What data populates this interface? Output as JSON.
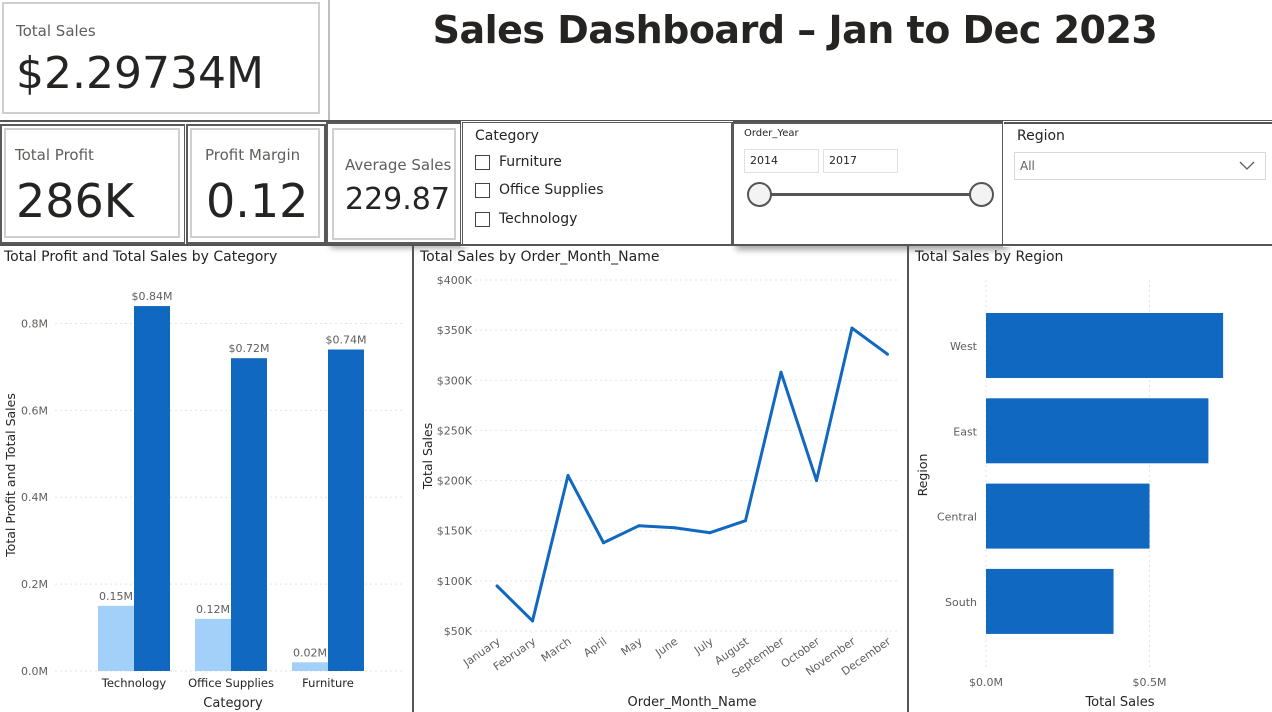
{
  "title": "Sales Dashboard – Jan to Dec 2023",
  "kpis": {
    "total_sales": {
      "label": "Total Sales",
      "value": "$2.29734M"
    },
    "total_profit": {
      "label": "Total Profit",
      "value": "286K"
    },
    "profit_margin": {
      "label": "Profit Margin",
      "value": "0.12"
    },
    "average_sales": {
      "label": "Average Sales",
      "value": "229.87"
    }
  },
  "slicers": {
    "category": {
      "title": "Category",
      "options": [
        "Furniture",
        "Office Supplies",
        "Technology"
      ]
    },
    "order_year": {
      "title": "Order_Year",
      "from": "2014",
      "to": "2017"
    },
    "region": {
      "title": "Region",
      "selected": "All"
    }
  },
  "colors": {
    "dark_blue": "#1068c0",
    "light_blue": "#a3d0f9",
    "grid": "#e3e3e3"
  },
  "chart_data": [
    {
      "type": "bar",
      "title": "Total Profit and Total Sales by Category",
      "categories": [
        "Technology",
        "Office Supplies",
        "Furniture"
      ],
      "series": [
        {
          "name": "Total Profit",
          "values": [
            0.15,
            0.12,
            0.02
          ],
          "labels": [
            "0.15M",
            "0.12M",
            "0.02M"
          ],
          "color": "#a3d0f9"
        },
        {
          "name": "Total Sales",
          "values": [
            0.84,
            0.72,
            0.74
          ],
          "labels": [
            "$0.84M",
            "$0.72M",
            "$0.74M"
          ],
          "color": "#1068c0"
        }
      ],
      "xlabel": "Category",
      "ylabel": "Total Profit and Total Sales",
      "yticks": [
        0,
        0.2,
        0.4,
        0.6,
        0.8
      ],
      "ytick_labels": [
        "0.0M",
        "0.2M",
        "0.4M",
        "0.6M",
        "0.8M"
      ],
      "ylim": [
        0,
        0.9
      ]
    },
    {
      "type": "line",
      "title": "Total Sales by Order_Month_Name",
      "x": [
        "January",
        "February",
        "March",
        "April",
        "May",
        "June",
        "July",
        "August",
        "September",
        "October",
        "November",
        "December"
      ],
      "y": [
        95000,
        60000,
        205000,
        138000,
        155000,
        153000,
        148000,
        160000,
        308000,
        200000,
        352000,
        326000
      ],
      "xlabel": "Order_Month_Name",
      "ylabel": "Total Sales",
      "yticks": [
        50000,
        100000,
        150000,
        200000,
        250000,
        300000,
        350000,
        400000
      ],
      "ytick_labels": [
        "$50K",
        "$100K",
        "$150K",
        "$200K",
        "$250K",
        "$300K",
        "$350K",
        "$400K"
      ],
      "ylim": [
        50000,
        400000
      ],
      "color": "#1068c0"
    },
    {
      "type": "bar",
      "orientation": "horizontal",
      "title": "Total Sales by Region",
      "categories": [
        "West",
        "East",
        "Central",
        "South"
      ],
      "values": [
        0.725,
        0.68,
        0.5,
        0.39
      ],
      "xlabel": "Total Sales",
      "ylabel": "Region",
      "xticks": [
        0,
        0.5
      ],
      "xtick_labels": [
        "$0.0M",
        "$0.5M"
      ],
      "xlim": [
        0,
        0.85
      ],
      "color": "#1068c0"
    }
  ]
}
